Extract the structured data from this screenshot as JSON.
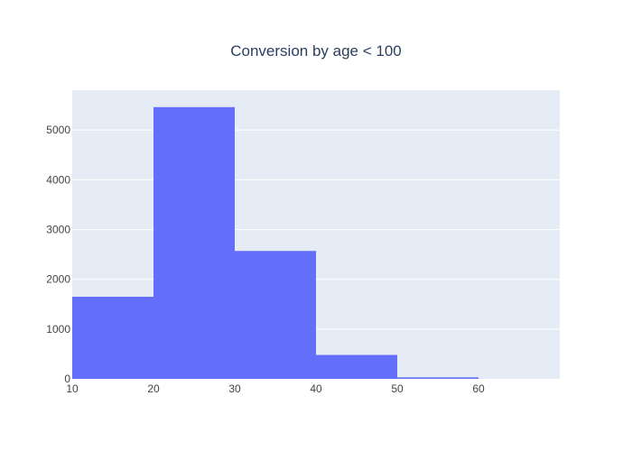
{
  "chart_data": {
    "type": "bar",
    "title": "Conversion by age < 100",
    "xlabel": "",
    "ylabel": "",
    "bins": [
      {
        "x0": 10,
        "x1": 20,
        "value": 1650
      },
      {
        "x0": 20,
        "x1": 30,
        "value": 5460
      },
      {
        "x0": 30,
        "x1": 40,
        "value": 2570
      },
      {
        "x0": 40,
        "x1": 50,
        "value": 480
      },
      {
        "x0": 50,
        "x1": 60,
        "value": 30
      }
    ],
    "xlim": [
      10,
      70
    ],
    "ylim": [
      0,
      5800
    ],
    "x_ticks": [
      "10",
      "20",
      "30",
      "40",
      "50",
      "60"
    ],
    "y_ticks": [
      "0",
      "1000",
      "2000",
      "3000",
      "4000",
      "5000"
    ],
    "bar_color": "#636efa",
    "plot_background": "#e5ecf6",
    "grid": true,
    "legend": false
  }
}
